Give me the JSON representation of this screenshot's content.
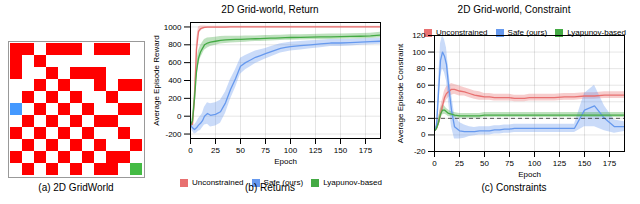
{
  "chart_data": [
    {
      "type": "grid",
      "caption": "(a) 2D GridWorld",
      "grid_size": 11,
      "color": "#ffffff",
      "tick_labels": false,
      "cell_groups": [
        {
          "color": "#ff0000",
          "cells": [
            [
              0,
              0
            ],
            [
              0,
              1
            ],
            [
              0,
              3
            ],
            [
              0,
              4
            ],
            [
              0,
              5
            ],
            [
              0,
              7
            ],
            [
              0,
              8
            ],
            [
              0,
              9
            ],
            [
              1,
              0
            ],
            [
              1,
              2
            ],
            [
              2,
              0
            ],
            [
              2,
              3
            ],
            [
              2,
              5
            ],
            [
              2,
              6
            ],
            [
              2,
              7
            ],
            [
              3,
              2
            ],
            [
              3,
              4
            ],
            [
              3,
              7
            ],
            [
              3,
              9
            ],
            [
              3,
              10
            ],
            [
              4,
              1
            ],
            [
              4,
              3
            ],
            [
              4,
              5
            ],
            [
              4,
              8
            ],
            [
              5,
              2
            ],
            [
              5,
              4
            ],
            [
              5,
              6
            ],
            [
              5,
              9
            ],
            [
              5,
              10
            ],
            [
              6,
              1
            ],
            [
              6,
              3
            ],
            [
              6,
              5
            ],
            [
              6,
              7
            ],
            [
              6,
              8
            ],
            [
              7,
              0
            ],
            [
              7,
              2
            ],
            [
              7,
              4
            ],
            [
              7,
              6
            ],
            [
              7,
              9
            ],
            [
              8,
              1
            ],
            [
              8,
              3
            ],
            [
              8,
              5
            ],
            [
              8,
              7
            ],
            [
              8,
              10
            ],
            [
              9,
              0
            ],
            [
              9,
              2
            ],
            [
              9,
              4
            ],
            [
              9,
              6
            ],
            [
              9,
              8
            ],
            [
              9,
              9
            ],
            [
              10,
              1
            ],
            [
              10,
              3
            ],
            [
              10,
              5
            ],
            [
              10,
              7
            ],
            [
              10,
              8
            ],
            [
              10,
              10
            ]
          ]
        },
        {
          "color": "#4499ff",
          "cells": [
            [
              5,
              0
            ]
          ]
        },
        {
          "color": "#44bb44",
          "cells": [
            [
              10,
              10
            ]
          ]
        }
      ]
    },
    {
      "type": "line",
      "title": "2D Grid-world, Return",
      "caption": "(b) Returns",
      "xlabel": "Epoch",
      "ylabel": "Average Episode Reward",
      "x": [
        0,
        2,
        4,
        6,
        8,
        10,
        12,
        14,
        17,
        20,
        25,
        30,
        35,
        40,
        45,
        50,
        55,
        60,
        65,
        70,
        75,
        80,
        85,
        90,
        95,
        100,
        110,
        120,
        130,
        140,
        150,
        160,
        170,
        180,
        190
      ],
      "xlim": [
        0,
        190
      ],
      "ylim": [
        -250,
        1050
      ],
      "xticks": [
        0,
        25,
        50,
        75,
        100,
        125,
        150,
        175
      ],
      "yticks": [
        -200,
        0,
        200,
        400,
        600,
        800,
        1000
      ],
      "grid": true,
      "legend": "lower right",
      "series": [
        {
          "name": "Unconstrained",
          "color": "#e87070",
          "values": [
            -100,
            -90,
            200,
            750,
            950,
            980,
            990,
            995,
            998,
            998,
            998,
            999,
            999,
            1000,
            1000,
            1000,
            1000,
            1000,
            1000,
            1000,
            1000,
            1000,
            1000,
            1000,
            1000,
            1000,
            1000,
            1000,
            1000,
            1000,
            1000,
            1000,
            1000,
            1000,
            1000
          ],
          "std": [
            30,
            30,
            80,
            100,
            50,
            30,
            20,
            15,
            10,
            10,
            10,
            10,
            10,
            8,
            8,
            8,
            8,
            8,
            8,
            8,
            8,
            8,
            8,
            8,
            8,
            8,
            8,
            8,
            8,
            8,
            8,
            8,
            8,
            8,
            8
          ]
        },
        {
          "name": "Safe (ours)",
          "color": "#6699ee",
          "values": [
            -100,
            -130,
            -150,
            -130,
            -100,
            -80,
            -50,
            0,
            30,
            10,
            20,
            50,
            150,
            300,
            420,
            560,
            600,
            630,
            660,
            680,
            700,
            720,
            740,
            760,
            770,
            780,
            790,
            800,
            810,
            820,
            820,
            825,
            830,
            835,
            840
          ],
          "std": [
            30,
            40,
            50,
            60,
            70,
            80,
            80,
            100,
            120,
            130,
            130,
            130,
            120,
            110,
            100,
            90,
            80,
            75,
            70,
            65,
            60,
            58,
            55,
            52,
            50,
            50,
            48,
            45,
            42,
            40,
            40,
            38,
            35,
            35,
            35
          ]
        },
        {
          "name": "Lyapunov-based",
          "color": "#44aa44",
          "values": [
            -100,
            -50,
            200,
            500,
            650,
            720,
            760,
            800,
            820,
            830,
            840,
            850,
            855,
            858,
            860,
            862,
            864,
            866,
            868,
            870,
            872,
            874,
            876,
            878,
            880,
            882,
            884,
            886,
            888,
            890,
            892,
            894,
            896,
            900,
            910
          ],
          "std": [
            30,
            40,
            80,
            100,
            80,
            70,
            65,
            60,
            55,
            50,
            45,
            42,
            40,
            38,
            36,
            35,
            34,
            33,
            32,
            32,
            31,
            30,
            30,
            30,
            30,
            30,
            30,
            30,
            30,
            30,
            30,
            30,
            30,
            30,
            30
          ]
        }
      ]
    },
    {
      "type": "line",
      "title": "2D Grid-world, Constraint",
      "caption": "(c) Constraints",
      "xlabel": "Epoch",
      "ylabel": "Average Episode Constraint",
      "x": [
        0,
        2,
        4,
        6,
        8,
        10,
        12,
        14,
        17,
        20,
        25,
        30,
        35,
        40,
        45,
        50,
        55,
        60,
        65,
        70,
        75,
        80,
        85,
        90,
        95,
        100,
        110,
        120,
        130,
        140,
        150,
        160,
        170,
        180,
        190
      ],
      "xlim": [
        0,
        190
      ],
      "ylim": [
        -20,
        120
      ],
      "xticks": [
        0,
        25,
        50,
        75,
        100,
        125,
        150,
        175
      ],
      "yticks": [
        -20,
        0,
        20,
        40,
        60,
        80,
        100,
        120
      ],
      "grid": true,
      "legend": "upper right",
      "reference_line": {
        "y": 20,
        "color": "#333333",
        "line_style": "dashed"
      },
      "series": [
        {
          "name": "Unconstrained",
          "color": "#e87070",
          "values": [
            5,
            8,
            15,
            25,
            35,
            45,
            50,
            52,
            55,
            55,
            53,
            52,
            50,
            48,
            47,
            46,
            46,
            45,
            45,
            45,
            45,
            44,
            44,
            44,
            45,
            45,
            45,
            45,
            46,
            46,
            47,
            47,
            48,
            48,
            48
          ],
          "std": [
            2,
            3,
            5,
            8,
            8,
            8,
            8,
            7,
            7,
            6,
            6,
            5,
            5,
            5,
            5,
            4,
            4,
            4,
            4,
            4,
            4,
            4,
            4,
            4,
            4,
            4,
            4,
            4,
            4,
            4,
            4,
            4,
            4,
            4,
            4
          ]
        },
        {
          "name": "Safe (ours)",
          "color": "#6699ee",
          "values": [
            5,
            10,
            50,
            90,
            100,
            95,
            85,
            60,
            30,
            10,
            5,
            4,
            4,
            4,
            5,
            5,
            5,
            6,
            6,
            7,
            7,
            8,
            8,
            8,
            8,
            8,
            8,
            8,
            8,
            8,
            30,
            35,
            20,
            10,
            10
          ],
          "std": [
            2,
            5,
            15,
            20,
            20,
            20,
            20,
            20,
            20,
            15,
            10,
            8,
            6,
            5,
            5,
            5,
            5,
            5,
            5,
            5,
            5,
            5,
            5,
            5,
            5,
            5,
            5,
            5,
            5,
            5,
            20,
            25,
            15,
            8,
            6
          ]
        },
        {
          "name": "Lyapunov-based",
          "color": "#44aa44",
          "values": [
            5,
            8,
            15,
            25,
            30,
            30,
            28,
            26,
            25,
            24,
            23,
            23,
            23,
            23,
            23,
            24,
            24,
            24,
            24,
            24,
            24,
            24,
            24,
            24,
            24,
            24,
            24,
            24,
            24,
            24,
            24,
            24,
            24,
            24,
            24
          ],
          "std": [
            2,
            3,
            5,
            6,
            6,
            5,
            4,
            4,
            3,
            3,
            3,
            3,
            3,
            3,
            3,
            3,
            3,
            3,
            3,
            3,
            3,
            3,
            3,
            3,
            3,
            3,
            3,
            3,
            3,
            3,
            3,
            3,
            3,
            3,
            3
          ]
        }
      ]
    }
  ]
}
